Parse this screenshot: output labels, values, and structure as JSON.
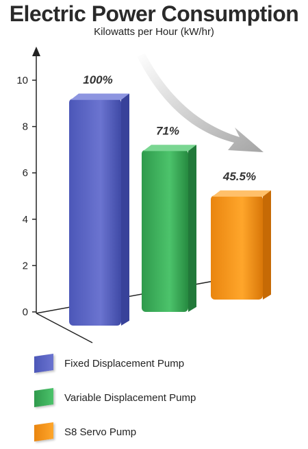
{
  "title": "Electric Power Consumption",
  "subtitle": "Kilowatts per Hour (kW/hr)",
  "colors": {
    "fixed": "#5f6ac8",
    "variable": "#3fb35e",
    "servo": "#f7941d",
    "axis": "#222222",
    "arrow": "#b8b8b8"
  },
  "chart_data": {
    "type": "bar",
    "title": "Electric Power Consumption",
    "subtitle": "Kilowatts per Hour (kW/hr)",
    "ylim": [
      0,
      10
    ],
    "yticks": [
      "0",
      "2",
      "4",
      "6",
      "8",
      "10"
    ],
    "grid": false,
    "legend_placement": "bottom",
    "categories": [
      "Fixed Displacement Pump",
      "Variable Displacement Pump",
      "S8 Servo Pump"
    ],
    "values": [
      9.8,
      7.0,
      4.5
    ],
    "data_labels": [
      "100%",
      "71%",
      "45.5%"
    ]
  },
  "legend": [
    {
      "label": "Fixed Displacement Pump",
      "color": "#5f6ac8"
    },
    {
      "label": "Variable Displacement Pump",
      "color": "#3fb35e"
    },
    {
      "label": "S8 Servo Pump",
      "color": "#f7941d"
    }
  ]
}
